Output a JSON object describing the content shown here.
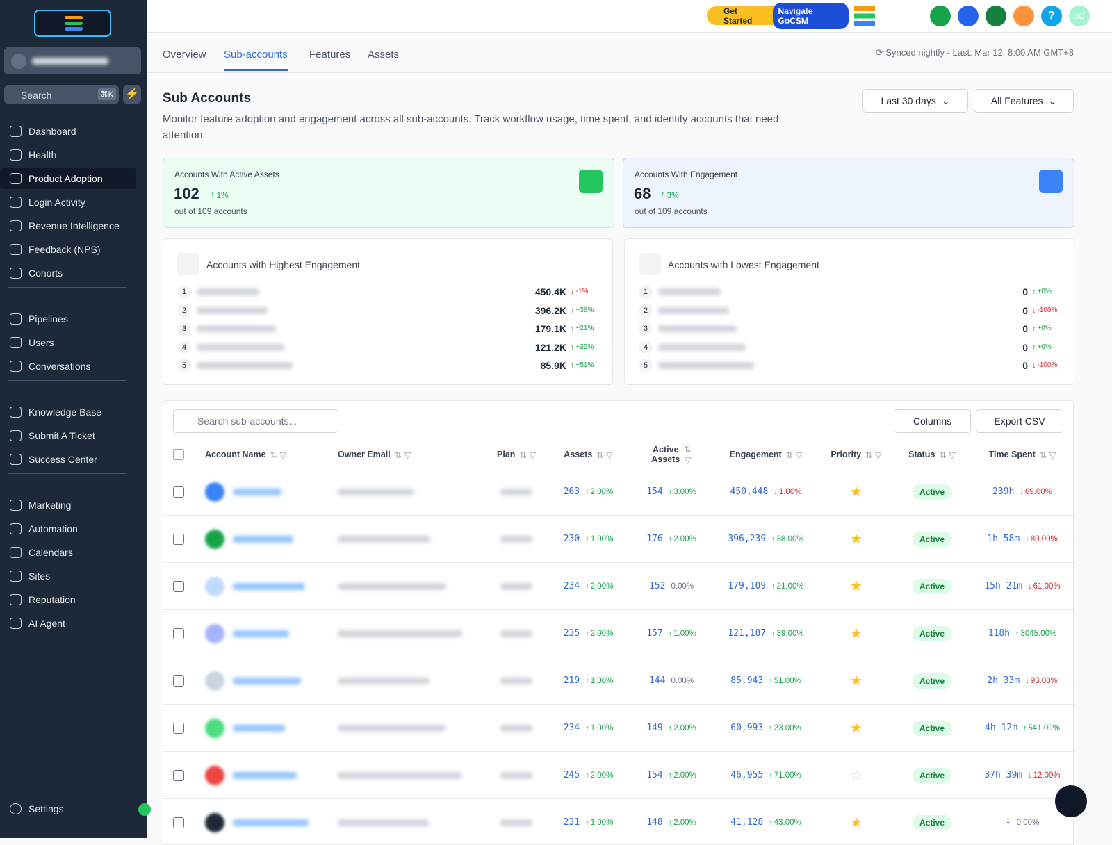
{
  "topbar": {
    "get_started": "Get Started",
    "navigate": "Navigate GoCSM",
    "avatar": "JC"
  },
  "sidebar": {
    "search": "Search",
    "shortcut": "⌘K",
    "active_item": {
      "group": 0,
      "index": 2
    },
    "groups": [
      [
        "Dashboard",
        "Health",
        "Product Adoption",
        "Login Activity",
        "Revenue Intelligence",
        "Feedback (NPS)",
        "Cohorts"
      ],
      [
        "Pipelines",
        "Users",
        "Conversations"
      ],
      [
        "Knowledge Base",
        "Submit A Ticket",
        "Success Center"
      ],
      [
        "Marketing",
        "Automation",
        "Calendars",
        "Sites",
        "Reputation",
        "AI Agent"
      ]
    ],
    "settings": "Settings"
  },
  "tabs": {
    "items": [
      "Overview",
      "Sub-accounts",
      "Features",
      "Assets"
    ],
    "active": 1,
    "sync": "Synced nightly - Last: Mar 12, 8:00 AM GMT+8"
  },
  "header": {
    "title": "Sub Accounts",
    "description": "Monitor feature adoption and engagement across all sub-accounts. Track workflow usage, time spent, and identify accounts that need attention.",
    "filters": [
      "Last 30 days",
      "All Features"
    ]
  },
  "stats": [
    {
      "label": "Accounts With Active Assets",
      "value": "102",
      "change": "1%",
      "sub": "out of 109 accounts"
    },
    {
      "label": "Accounts With Engagement",
      "value": "68",
      "change": "3%",
      "sub": "out of 109 accounts"
    }
  ],
  "rankings": [
    {
      "title": "Accounts with Highest Engagement",
      "items": [
        {
          "rank": "1",
          "value": "450.4K",
          "change": "-1%",
          "dir": "down"
        },
        {
          "rank": "2",
          "value": "396.2K",
          "change": "+38%",
          "dir": "up"
        },
        {
          "rank": "3",
          "value": "179.1K",
          "change": "+21%",
          "dir": "up"
        },
        {
          "rank": "4",
          "value": "121.2K",
          "change": "+39%",
          "dir": "up"
        },
        {
          "rank": "5",
          "value": "85.9K",
          "change": "+51%",
          "dir": "up"
        }
      ]
    },
    {
      "title": "Accounts with Lowest Engagement",
      "items": [
        {
          "rank": "1",
          "value": "0",
          "change": "+0%",
          "dir": "up"
        },
        {
          "rank": "2",
          "value": "0",
          "change": "-100%",
          "dir": "down"
        },
        {
          "rank": "3",
          "value": "0",
          "change": "+0%",
          "dir": "up"
        },
        {
          "rank": "4",
          "value": "0",
          "change": "+0%",
          "dir": "up"
        },
        {
          "rank": "5",
          "value": "0",
          "change": "-100%",
          "dir": "down"
        }
      ]
    }
  ],
  "table": {
    "search": "Search sub-accounts...",
    "buttons": [
      "Columns",
      "Export CSV"
    ],
    "columns": [
      "Account Name",
      "Owner Email",
      "Plan",
      "Assets",
      "Active Assets",
      "Engagement",
      "Priority",
      "Status",
      "Time Spent"
    ],
    "rows": [
      {
        "assets": [
          "263",
          "2.00%",
          "up"
        ],
        "active": [
          "154",
          "3.00%",
          "up"
        ],
        "engagement": [
          "450,448",
          "1.00%",
          "down"
        ],
        "starred": true,
        "status": "Active",
        "time": [
          "239h",
          "69.00%",
          "down"
        ]
      },
      {
        "assets": [
          "230",
          "1.00%",
          "up"
        ],
        "active": [
          "176",
          "2.00%",
          "up"
        ],
        "engagement": [
          "396,239",
          "38.00%",
          "up"
        ],
        "starred": true,
        "status": "Active",
        "time": [
          "1h 58m",
          "80.00%",
          "down"
        ]
      },
      {
        "assets": [
          "234",
          "2.00%",
          "up"
        ],
        "active": [
          "152",
          "0.00%",
          "none"
        ],
        "engagement": [
          "179,109",
          "21.00%",
          "up"
        ],
        "starred": true,
        "status": "Active",
        "time": [
          "15h 21m",
          "61.00%",
          "down"
        ]
      },
      {
        "assets": [
          "235",
          "2.00%",
          "up"
        ],
        "active": [
          "157",
          "1.00%",
          "up"
        ],
        "engagement": [
          "121,187",
          "39.00%",
          "up"
        ],
        "starred": true,
        "status": "Active",
        "time": [
          "118h",
          "3045.00%",
          "up"
        ]
      },
      {
        "assets": [
          "219",
          "1.00%",
          "up"
        ],
        "active": [
          "144",
          "0.00%",
          "none"
        ],
        "engagement": [
          "85,943",
          "51.00%",
          "up"
        ],
        "starred": true,
        "status": "Active",
        "time": [
          "2h 33m",
          "93.00%",
          "down"
        ]
      },
      {
        "assets": [
          "234",
          "1.00%",
          "up"
        ],
        "active": [
          "149",
          "2.00%",
          "up"
        ],
        "engagement": [
          "60,993",
          "23.00%",
          "up"
        ],
        "starred": true,
        "status": "Active",
        "time": [
          "4h 12m",
          "541.00%",
          "up"
        ]
      },
      {
        "assets": [
          "245",
          "2.00%",
          "up"
        ],
        "active": [
          "154",
          "2.00%",
          "up"
        ],
        "engagement": [
          "46,955",
          "71.00%",
          "up"
        ],
        "starred": false,
        "status": "Active",
        "time": [
          "37h 39m",
          "12.00%",
          "down"
        ]
      },
      {
        "assets": [
          "231",
          "1.00%",
          "up"
        ],
        "active": [
          "148",
          "2.00%",
          "up"
        ],
        "engagement": [
          "41,128",
          "43.00%",
          "up"
        ],
        "starred": true,
        "status": "Active",
        "time": [
          "-",
          "0.00%",
          "none"
        ]
      }
    ]
  }
}
